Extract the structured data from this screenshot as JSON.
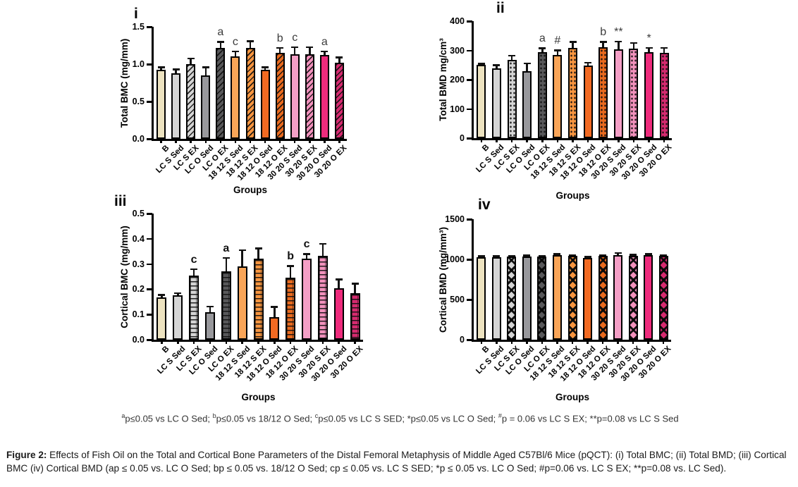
{
  "figure": {
    "caption": {
      "label": "Figure 2:",
      "text": " Effects of Fish Oil on the Total and Cortical Bone Parameters of the Distal Femoral Metaphysis of Middle Aged C57Bl/6 Mice (pQCT): (i) Total BMC; (ii) Total BMD; (iii) Cortical BMC (iv) Cortical BMD (ap ≤ 0.05 vs. LC O Sed; bp ≤ 0.05 vs. 18/12 O Sed; cp ≤ 0.05 vs. LC S SED; *p ≤ 0.05 vs. LC O Sed; #p=0.06 vs. LC S EX; **p=0.08 vs. LC Sed)."
    },
    "footnote_segments": [
      {
        "t": "a",
        "sup": true
      },
      {
        "t": "p≤0.05 vs LC O Sed; ",
        "sup": false
      },
      {
        "t": "b",
        "sup": true
      },
      {
        "t": "p≤0.05 vs 18/12 O Sed; ",
        "sup": false
      },
      {
        "t": "c",
        "sup": true
      },
      {
        "t": "p≤0.05 vs LC S SED; *p≤0.05 vs LC O Sed; ",
        "sup": false
      },
      {
        "t": "#",
        "sup": true
      },
      {
        "t": "p = 0.06 vs LC S EX; **p=0.08 vs LC S Sed",
        "sup": false
      }
    ]
  },
  "groups": [
    "B",
    "LC S Sed",
    "LC S EX",
    "LC O Sed",
    "LC O EX",
    "18 12 S Sed",
    "18 12 S EX",
    "18 12 O Sed",
    "18 12 O EX",
    "30 20 S Sed",
    "30 20 S EX",
    "30 20 O Sed",
    "30 20 O EX"
  ],
  "group_styles": {
    "colors": [
      "#EDE3C0",
      "#D5D5D5",
      "#D5D5D5",
      "#98989C",
      "#58585A",
      "#F9A558",
      "#F8953F",
      "#F26A22",
      "#E96A1E",
      "#F49FC6",
      "#F291BC",
      "#EE2B7C",
      "#D62A6F"
    ],
    "hatched": [
      false,
      false,
      true,
      false,
      true,
      false,
      true,
      false,
      true,
      false,
      true,
      false,
      true
    ]
  },
  "chart_data": [
    {
      "id": "i",
      "type": "bar",
      "corner_label": "i",
      "ylabel": "Total BMC (mg/mm)",
      "xlabel": "Groups",
      "ylim": [
        0,
        1.5
      ],
      "yticks": [
        {
          "v": 0,
          "label": "0.0"
        },
        {
          "v": 0.5,
          "label": "0.5"
        },
        {
          "v": 1.0,
          "label": "1.0"
        },
        {
          "v": 1.5,
          "label": "1.5"
        }
      ],
      "values": [
        0.92,
        0.88,
        1.0,
        0.85,
        1.22,
        1.1,
        1.22,
        0.92,
        1.15,
        1.13,
        1.13,
        1.12,
        1.02
      ],
      "errors": [
        0.04,
        0.05,
        0.08,
        0.11,
        0.08,
        0.07,
        0.09,
        0.04,
        0.07,
        0.1,
        0.1,
        0.05,
        0.07
      ],
      "annotations": [
        {
          "index": 4,
          "text": "a"
        },
        {
          "index": 5,
          "text": "c"
        },
        {
          "index": 8,
          "text": "b"
        },
        {
          "index": 9,
          "text": "c"
        },
        {
          "index": 11,
          "text": "a"
        }
      ],
      "hatch_pattern": "diagonal",
      "grid": false,
      "legend": "none"
    },
    {
      "id": "ii",
      "type": "bar",
      "corner_label": "ii",
      "ylabel": "Total BMD mg/cm³",
      "xlabel": "Groups",
      "ylim": [
        0,
        400
      ],
      "yticks": [
        {
          "v": 0,
          "label": "0"
        },
        {
          "v": 100,
          "label": "100"
        },
        {
          "v": 200,
          "label": "200"
        },
        {
          "v": 300,
          "label": "300"
        },
        {
          "v": 400,
          "label": "400"
        }
      ],
      "values": [
        250,
        238,
        267,
        228,
        293,
        284,
        308,
        248,
        311,
        304,
        307,
        295,
        292
      ],
      "errors": [
        5,
        12,
        15,
        28,
        15,
        17,
        22,
        10,
        19,
        27,
        19,
        14,
        17
      ],
      "annotations": [
        {
          "index": 4,
          "text": "a"
        },
        {
          "index": 5,
          "text": "#"
        },
        {
          "index": 8,
          "text": "b"
        },
        {
          "index": 9,
          "text": "**"
        },
        {
          "index": 11,
          "text": "*"
        }
      ],
      "hatch_pattern": "dots",
      "grid": false,
      "legend": "none"
    },
    {
      "id": "iii",
      "type": "bar",
      "corner_label": "iii",
      "ylabel": "Cortical BMC (mg/mm)",
      "xlabel": "Groups",
      "ylim": [
        0,
        0.5
      ],
      "yticks": [
        {
          "v": 0,
          "label": "0.0"
        },
        {
          "v": 0.1,
          "label": "0.1"
        },
        {
          "v": 0.2,
          "label": "0.2"
        },
        {
          "v": 0.3,
          "label": "0.3"
        },
        {
          "v": 0.4,
          "label": "0.4"
        },
        {
          "v": 0.5,
          "label": "0.5"
        }
      ],
      "values": [
        0.168,
        0.177,
        0.255,
        0.11,
        0.272,
        0.29,
        0.32,
        0.09,
        0.247,
        0.322,
        0.332,
        0.204,
        0.185
      ],
      "errors": [
        0.01,
        0.008,
        0.025,
        0.022,
        0.053,
        0.065,
        0.043,
        0.04,
        0.046,
        0.018,
        0.048,
        0.035,
        0.038
      ],
      "annotations": [
        {
          "index": 2,
          "text": "c"
        },
        {
          "index": 4,
          "text": "a"
        },
        {
          "index": 8,
          "text": "b"
        },
        {
          "index": 9,
          "text": "c"
        }
      ],
      "hatch_pattern": "brick",
      "annotation_bold": true,
      "grid": false,
      "legend": "none"
    },
    {
      "id": "iv",
      "type": "bar",
      "corner_label": "iv",
      "ylabel": "Cortical BMD (mg/mm³)",
      "xlabel": "Groups",
      "ylim": [
        0,
        1500
      ],
      "yticks": [
        {
          "v": 0,
          "label": "0"
        },
        {
          "v": 500,
          "label": "500"
        },
        {
          "v": 1000,
          "label": "1000"
        },
        {
          "v": 1500,
          "label": "1500"
        }
      ],
      "values": [
        1030,
        1030,
        1035,
        1038,
        1035,
        1055,
        1040,
        1015,
        1045,
        1055,
        1045,
        1055,
        1040
      ],
      "errors": [
        10,
        12,
        12,
        12,
        12,
        15,
        15,
        20,
        12,
        25,
        15,
        15,
        12
      ],
      "annotations": [],
      "hatch_pattern": "diamond",
      "grid": false,
      "legend": "none"
    }
  ]
}
